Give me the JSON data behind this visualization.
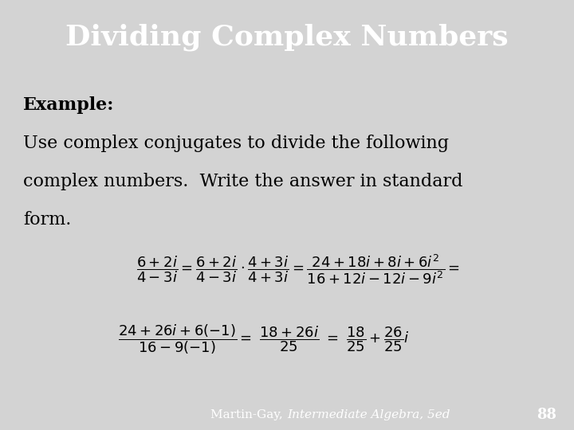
{
  "title": "Dividing Complex Numbers",
  "title_bg_color": "#1a3a5c",
  "title_text_color": "#ffffff",
  "body_bg_color": "#d3d3d3",
  "stripe_color": "#8b0000",
  "footer_bg_color": "#1a3a5c",
  "footer_text": "Martin-Gay, ",
  "footer_italic": "Intermediate Algebra, 5ed",
  "footer_page": "88",
  "footer_text_color": "#ffffff",
  "example_label": "Example:",
  "example_text_line1": "Use complex conjugates to divide the following",
  "example_text_line2": "complex numbers.  Write the answer in standard",
  "example_text_line3": "form.",
  "math_line1": "$\\dfrac{6+2i}{4-3i} = \\dfrac{6+2i}{4-3i} \\cdot \\dfrac{4+3i}{4+3i} = \\dfrac{24+18i+8i+6i^2}{16+12i-12i-9i^2} = $",
  "math_line2": "$\\dfrac{24+26i+6(-1)}{16-9(-1)} = \\ \\dfrac{18+26i}{25} \\ = \\ \\dfrac{18}{25}+\\dfrac{26}{25}i$",
  "text_color": "#000000",
  "fig_width": 7.2,
  "fig_height": 5.4
}
